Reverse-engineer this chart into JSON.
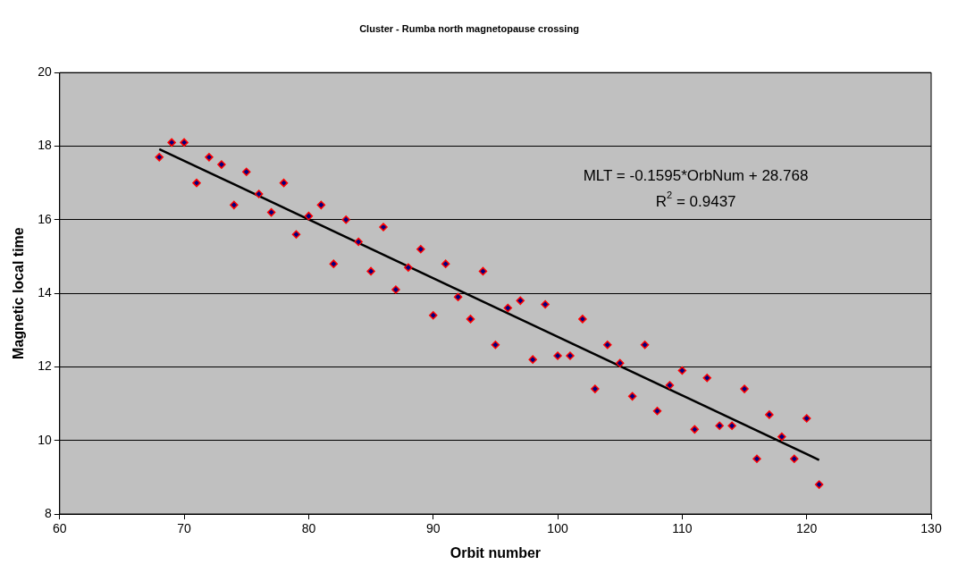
{
  "chart_data": {
    "type": "scatter",
    "title": "Cluster - Rumba north magnetopause crossing",
    "xlabel": "Orbit number",
    "ylabel": "Magnetic local time",
    "x": [
      68,
      69,
      70,
      71,
      72,
      73,
      74,
      75,
      76,
      77,
      78,
      79,
      80,
      81,
      82,
      83,
      84,
      85,
      86,
      87,
      88,
      89,
      90,
      91,
      92,
      93,
      94,
      95,
      96,
      97,
      98,
      99,
      100,
      101,
      102,
      103,
      104,
      105,
      106,
      107,
      108,
      109,
      110,
      111,
      112,
      113,
      114,
      115,
      116,
      117,
      118,
      119,
      120,
      121
    ],
    "series": [
      {
        "type": "scatter",
        "color": "#000080",
        "values": [
          17.7,
          18.1,
          18.1,
          17.0,
          17.7,
          17.5,
          16.4,
          17.3,
          16.7,
          16.2,
          17.0,
          15.6,
          16.1,
          16.4,
          14.8,
          16.0,
          15.4,
          14.6,
          15.8,
          14.1,
          14.7,
          15.2,
          13.4,
          14.8,
          13.9,
          13.3,
          14.6,
          12.6,
          13.6,
          13.8,
          12.2,
          13.7,
          12.3,
          12.3,
          13.3,
          11.4,
          12.6,
          12.1,
          11.2,
          12.6,
          10.8,
          11.5,
          11.9,
          10.3,
          11.7,
          10.4,
          10.4,
          11.4,
          9.5,
          10.7,
          10.1,
          9.5,
          10.6,
          8.8
        ]
      },
      {
        "type": "line",
        "color": "#000000",
        "marker": "none",
        "x": [
          68,
          121
        ],
        "values": [
          17.92,
          9.47
        ]
      }
    ],
    "annotations": [
      "MLT = -0.1595*OrbNum + 28.768",
      "R$^{2}$ = 0.9437"
    ],
    "xlim": [
      60,
      130
    ],
    "xticks": [
      60,
      70,
      80,
      90,
      100,
      110,
      120,
      130
    ],
    "ylim": [
      8,
      20
    ],
    "yticks": [
      8,
      10,
      12,
      14,
      16,
      18,
      20
    ],
    "grid": "y",
    "legend": false,
    "marker": "diamond"
  }
}
